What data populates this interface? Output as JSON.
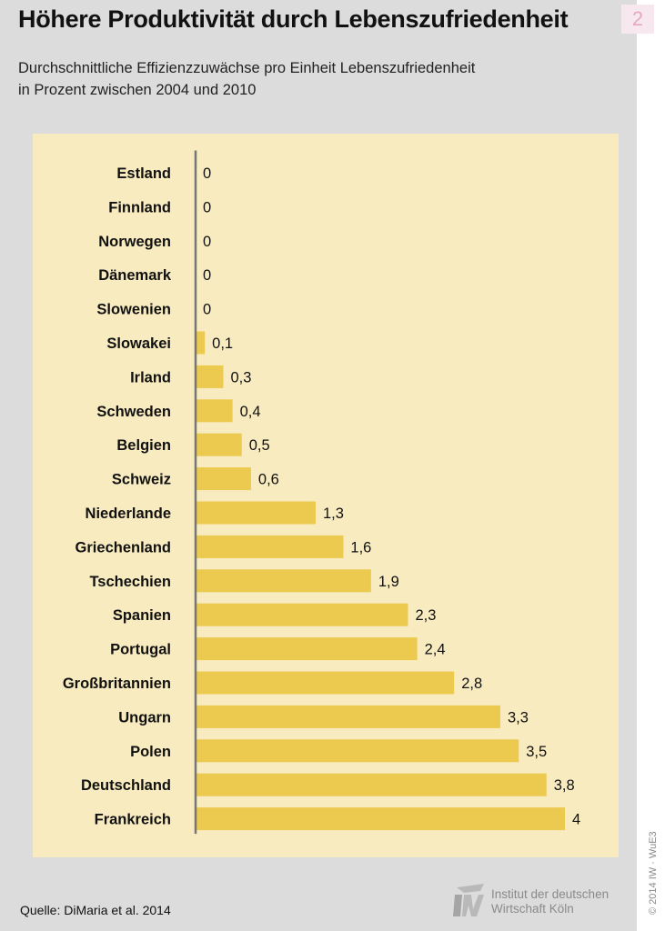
{
  "header": {
    "title": "Höhere Produktivität durch Lebenszufriedenheit",
    "badge": "2",
    "subtitle_line1": "Durchschnittliche Effizienzzuwächse pro Einheit Lebenszufriedenheit",
    "subtitle_line2": "in Prozent zwischen 2004 und 2010"
  },
  "footer": {
    "source": "Quelle: DiMaria et al. 2014",
    "logo_line1": "Institut der deutschen",
    "logo_line2": "Wirtschaft Köln",
    "copyright": "© 2014 IW · WuE3"
  },
  "colors": {
    "bar": "#ecc94f",
    "chart_background": "#f8ebbf",
    "panel": "#dcdcdd",
    "axis": "#777777"
  },
  "chart_data": {
    "type": "bar",
    "orientation": "horizontal",
    "title": "Höhere Produktivität durch Lebenszufriedenheit",
    "subtitle": "Durchschnittliche Effizienzzuwächse pro Einheit Lebenszufriedenheit in Prozent zwischen 2004 und 2010",
    "categories": [
      "Estland",
      "Finnland",
      "Norwegen",
      "Dänemark",
      "Slowenien",
      "Slowakei",
      "Irland",
      "Schweden",
      "Belgien",
      "Schweiz",
      "Niederlande",
      "Griechenland",
      "Tschechien",
      "Spanien",
      "Portugal",
      "Großbritannien",
      "Ungarn",
      "Polen",
      "Deutschland",
      "Frankreich"
    ],
    "values": [
      0,
      0,
      0,
      0,
      0,
      0.1,
      0.3,
      0.4,
      0.5,
      0.6,
      1.3,
      1.6,
      1.9,
      2.3,
      2.4,
      2.8,
      3.3,
      3.5,
      3.8,
      4
    ],
    "value_labels": [
      "0",
      "0",
      "0",
      "0",
      "0",
      "0,1",
      "0,3",
      "0,4",
      "0,5",
      "0,6",
      "1,3",
      "1,6",
      "1,9",
      "2,3",
      "2,4",
      "2,8",
      "3,3",
      "3,5",
      "3,8",
      "4"
    ],
    "xlim": [
      0,
      4
    ],
    "grid": false,
    "legend": "none"
  }
}
